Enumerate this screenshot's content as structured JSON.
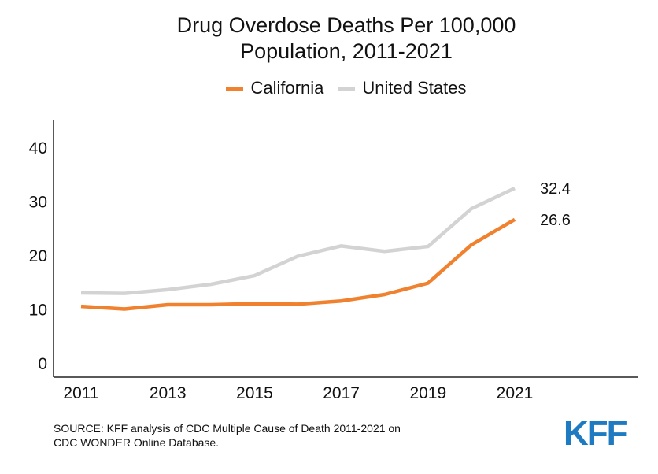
{
  "chart_data": {
    "type": "line",
    "title_lines": [
      "Drug Overdose Deaths Per 100,000",
      "Population, 2011-2021"
    ],
    "x": [
      2011,
      2012,
      2013,
      2014,
      2015,
      2016,
      2017,
      2018,
      2019,
      2020,
      2021
    ],
    "x_tick_labels": [
      "2011",
      "2013",
      "2015",
      "2017",
      "2019",
      "2021"
    ],
    "y_tick_labels": [
      "0",
      "10",
      "20",
      "30",
      "40"
    ],
    "ylim": [
      0,
      40
    ],
    "grid": false,
    "legend_position": "top",
    "series": [
      {
        "name": "California",
        "color": "#f0812f",
        "values": [
          10.5,
          10.0,
          10.8,
          10.8,
          11.0,
          10.9,
          11.5,
          12.7,
          14.8,
          21.9,
          26.6
        ],
        "end_label": "26.6"
      },
      {
        "name": "United States",
        "color": "#d3d3d3",
        "values": [
          13.0,
          12.9,
          13.6,
          14.6,
          16.2,
          19.8,
          21.7,
          20.7,
          21.6,
          28.6,
          32.4
        ],
        "end_label": "32.4"
      }
    ]
  },
  "source": [
    "SOURCE: KFF analysis of CDC Multiple Cause of Death 2011-2021 on",
    "CDC WONDER Online Database."
  ],
  "logo": "KFF"
}
